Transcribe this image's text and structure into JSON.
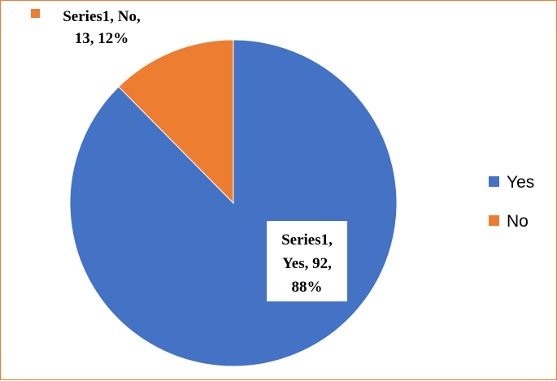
{
  "chart_data": {
    "type": "pie",
    "series": [
      {
        "name": "Series1",
        "categories": [
          "Yes",
          "No"
        ],
        "values": [
          92,
          13
        ],
        "percent_labels": [
          "88%",
          "12%"
        ]
      }
    ],
    "categories": [
      "Yes",
      "No"
    ],
    "values": [
      92,
      13
    ],
    "colors": [
      "#4472c4",
      "#ed7d31"
    ],
    "legend": {
      "position": "right",
      "entries": [
        "Yes",
        "No"
      ]
    },
    "data_labels": [
      {
        "category": "Yes",
        "lines": [
          "Series1,",
          "Yes, 92,",
          "88%"
        ]
      },
      {
        "category": "No",
        "lines": [
          "Series1, No,",
          "13, 12%"
        ]
      }
    ]
  }
}
